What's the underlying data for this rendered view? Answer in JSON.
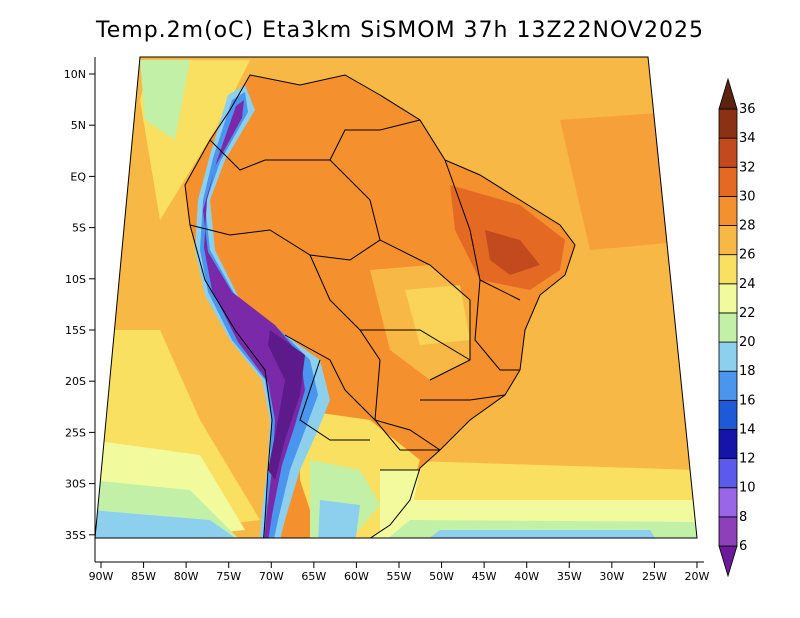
{
  "title": "Temp.2m(oC) Eta3km SiSMOM 37h 13Z22NOV2025",
  "map": {
    "lat_ticks": [
      "10N",
      "5N",
      "EQ",
      "5S",
      "10S",
      "15S",
      "20S",
      "25S",
      "30S",
      "35S"
    ],
    "lon_ticks": [
      "90W",
      "85W",
      "80W",
      "75W",
      "70W",
      "65W",
      "60W",
      "55W",
      "50W",
      "45W",
      "40W",
      "35W",
      "30W",
      "25W",
      "20W"
    ]
  },
  "colorbar": {
    "labels": [
      "6",
      "8",
      "10",
      "12",
      "14",
      "16",
      "18",
      "20",
      "22",
      "24",
      "26",
      "28",
      "30",
      "32",
      "34",
      "36"
    ],
    "colors": [
      "#6a1a9a",
      "#8e3fba",
      "#9a66e8",
      "#5a5aec",
      "#1414a8",
      "#1c5ad8",
      "#4a96ee",
      "#8cd0ee",
      "#c2f0a6",
      "#f2fa9e",
      "#fae060",
      "#f8b846",
      "#f4902e",
      "#e46a24",
      "#c24a1e",
      "#8c3214",
      "#5c2410"
    ]
  },
  "colors": {
    "sea_warm": "#f8b846",
    "land_hot": "#f4902e",
    "andes_cold": "#7a2aa8"
  }
}
